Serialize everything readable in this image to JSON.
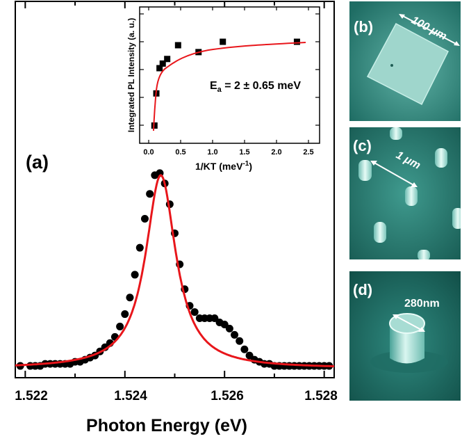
{
  "chart_data": [
    {
      "panel": "(a)",
      "type": "scatter",
      "xlabel": "Photon Energy (eV)",
      "ylabel": "",
      "xlim": [
        1.5218,
        1.5282
      ],
      "ylim": [
        0,
        1.0
      ],
      "x_ticks": [
        "1.522",
        "1.524",
        "1.526",
        "1.528"
      ],
      "y_ticks": [],
      "grid": false,
      "series": [
        {
          "role": "measured",
          "style": "black filled circles",
          "x": [
            1.5219,
            1.5221,
            1.5223,
            1.5225,
            1.5227,
            1.5229,
            1.5231,
            1.5233,
            1.5235,
            1.5237,
            1.5239,
            1.5241,
            1.5243,
            1.5245,
            1.5247,
            1.5249,
            1.5251,
            1.5253,
            1.5255,
            1.5257,
            1.5259,
            1.5261,
            1.5263,
            1.5265,
            1.5267,
            1.5269,
            1.5271,
            1.5273,
            1.5275,
            1.5277,
            1.5279,
            1.5281,
            1.5222,
            1.5224,
            1.5226,
            1.5228,
            1.523,
            1.5232,
            1.5234,
            1.5236,
            1.5238,
            1.524,
            1.5242,
            1.5244,
            1.5246,
            1.5248,
            1.525,
            1.5252,
            1.5254,
            1.5256,
            1.5258,
            1.526,
            1.5262,
            1.5264,
            1.5266,
            1.5268,
            1.527,
            1.5272,
            1.5274,
            1.5276,
            1.5278,
            1.528
          ],
          "y": [
            0.03,
            0.03,
            0.03,
            0.04,
            0.04,
            0.04,
            0.05,
            0.07,
            0.1,
            0.14,
            0.22,
            0.36,
            0.6,
            0.86,
            0.96,
            0.81,
            0.52,
            0.32,
            0.26,
            0.26,
            0.24,
            0.21,
            0.15,
            0.08,
            0.05,
            0.04,
            0.03,
            0.03,
            0.03,
            0.03,
            0.03,
            0.03,
            0.03,
            0.04,
            0.04,
            0.04,
            0.05,
            0.06,
            0.08,
            0.12,
            0.17,
            0.28,
            0.47,
            0.74,
            0.95,
            0.91,
            0.67,
            0.4,
            0.29,
            0.26,
            0.26,
            0.23,
            0.18,
            0.11,
            0.06,
            0.04,
            0.03,
            0.03,
            0.03,
            0.03,
            0.03,
            0.03
          ]
        },
        {
          "role": "fit",
          "style": "red line",
          "color": "#e8161b",
          "peak_x": 1.52472,
          "peak_y": 0.95,
          "width_hwhm": 0.00037,
          "baseline": 0.018
        }
      ]
    },
    {
      "panel": "inset",
      "type": "scatter",
      "xlabel": "1/KT (meV⁻¹)",
      "ylabel": "Integrated PL Intensity (a. u.)",
      "xlim": [
        0,
        2.7
      ],
      "ylim": [
        0,
        1
      ],
      "x_ticks": [
        "0.0",
        "0.5",
        "1.0",
        "1.5",
        "2.0",
        "2.5"
      ],
      "y_ticks": [],
      "annotation": "E_a = 2 ± 0.65 meV",
      "series": [
        {
          "role": "measured",
          "style": "black filled squares",
          "x": [
            0.09,
            0.12,
            0.17,
            0.22,
            0.29,
            0.46,
            0.78,
            1.16,
            2.32
          ],
          "y": [
            0.1,
            0.38,
            0.6,
            0.64,
            0.68,
            0.8,
            0.74,
            0.83,
            0.83
          ]
        },
        {
          "role": "fit",
          "style": "red line",
          "color": "#e8161b"
        }
      ]
    }
  ],
  "main": {
    "panel_label": "(a)",
    "xlabel": "Photon Energy (eV)",
    "ticks": [
      "1.522",
      "1.524",
      "1.526",
      "1.528"
    ]
  },
  "inset": {
    "ylabel": "Integrated PL Intensity (a. u.)",
    "xlabel_main": "1/KT (meV",
    "xlabel_sup": "-1",
    "xlabel_close": ")",
    "ticks": [
      "0.0",
      "0.5",
      "1.0",
      "1.5",
      "2.0",
      "2.5"
    ],
    "annotation_main": "E",
    "annotation_sub": "a",
    "annotation_rest": " = 2 ± 0.65 meV"
  },
  "micrographs": {
    "b": {
      "label": "(b)",
      "scale": "100 μm"
    },
    "c": {
      "label": "(c)",
      "scale": "1 μm"
    },
    "d": {
      "label": "(d)",
      "scale": "280nm"
    }
  },
  "colors": {
    "fit": "#e8161b",
    "data": "#000000",
    "sem_bg": "#2f8a80",
    "sem_light": "#9fd6cc"
  }
}
